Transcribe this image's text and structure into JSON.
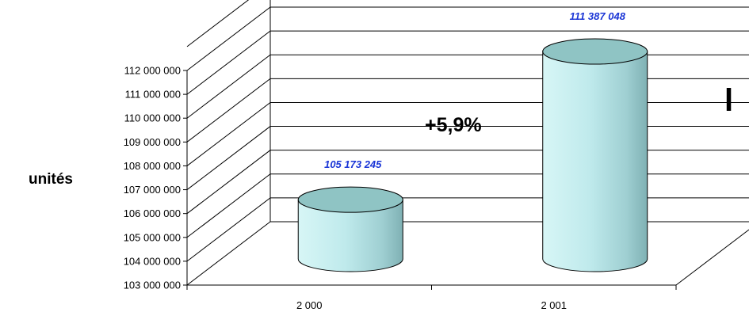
{
  "chart_data": {
    "type": "bar",
    "title": "",
    "xlabel": "",
    "ylabel": "unités",
    "categories": [
      "2 000",
      "2 001"
    ],
    "values": [
      105173245,
      111387048
    ],
    "value_labels": [
      "105 173 245",
      "111 387 048"
    ],
    "ylim": [
      103000000,
      112000000
    ],
    "y_ticks": [
      103000000,
      104000000,
      105000000,
      106000000,
      107000000,
      108000000,
      109000000,
      110000000,
      111000000,
      112000000
    ],
    "y_tick_labels": [
      "103 000 000",
      "104 000 000",
      "105 000 000",
      "106 000 000",
      "107 000 000",
      "108 000 000",
      "109 000 000",
      "110 000 000",
      "111 000 000",
      "112 000 000"
    ],
    "grid": true,
    "style": "3d-cylinder",
    "annotation": "+5,9%",
    "legend_fragment": "l",
    "colors": {
      "bar_fill": "#b8e6e8",
      "bar_top": "#8fc4c4",
      "value_label": "#1a35d6",
      "grid": "#000000"
    }
  }
}
